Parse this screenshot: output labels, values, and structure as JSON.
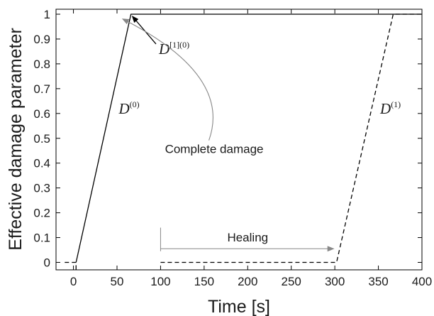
{
  "chart_data": {
    "type": "line",
    "xlabel": "Time [s]",
    "ylabel": "Effective damage parameter",
    "xlim": [
      -20,
      400
    ],
    "ylim": [
      -0.03,
      1.02
    ],
    "xticks": [
      0,
      50,
      100,
      150,
      200,
      250,
      300,
      350,
      400
    ],
    "yticks": [
      0,
      0.1,
      0.2,
      0.3,
      0.4,
      0.5,
      0.6,
      0.7,
      0.8,
      0.9,
      1
    ],
    "grid": false,
    "series": [
      {
        "name": "D(0)",
        "style": "solid",
        "color": "#000000",
        "points": [
          [
            3,
            0
          ],
          [
            66,
            1
          ],
          [
            400,
            1
          ]
        ]
      },
      {
        "name": "D(1)",
        "style": "dashed",
        "color": "#000000",
        "points": [
          [
            -10,
            0
          ],
          [
            3,
            0
          ],
          [
            3,
            -0.03
          ]
        ],
        "points_b": [
          [
            100,
            0
          ],
          [
            302,
            0
          ],
          [
            367,
            1
          ],
          [
            400,
            1
          ]
        ]
      }
    ],
    "annotations": {
      "d0_label": {
        "base": "D",
        "sup": "(0)",
        "x": 52,
        "y": 0.6
      },
      "d1_label": {
        "base": "D",
        "sup": "(1)",
        "x": 352,
        "y": 0.6
      },
      "d10_label": {
        "base": "D",
        "sup": "[1](0)",
        "x": 98,
        "y": 0.84
      },
      "complete_damage": {
        "text": "Complete damage",
        "x": 105,
        "y": 0.44
      },
      "healing": {
        "text": "Healing",
        "x": 200,
        "y": 0.085,
        "from": 100,
        "to": 298
      }
    }
  }
}
